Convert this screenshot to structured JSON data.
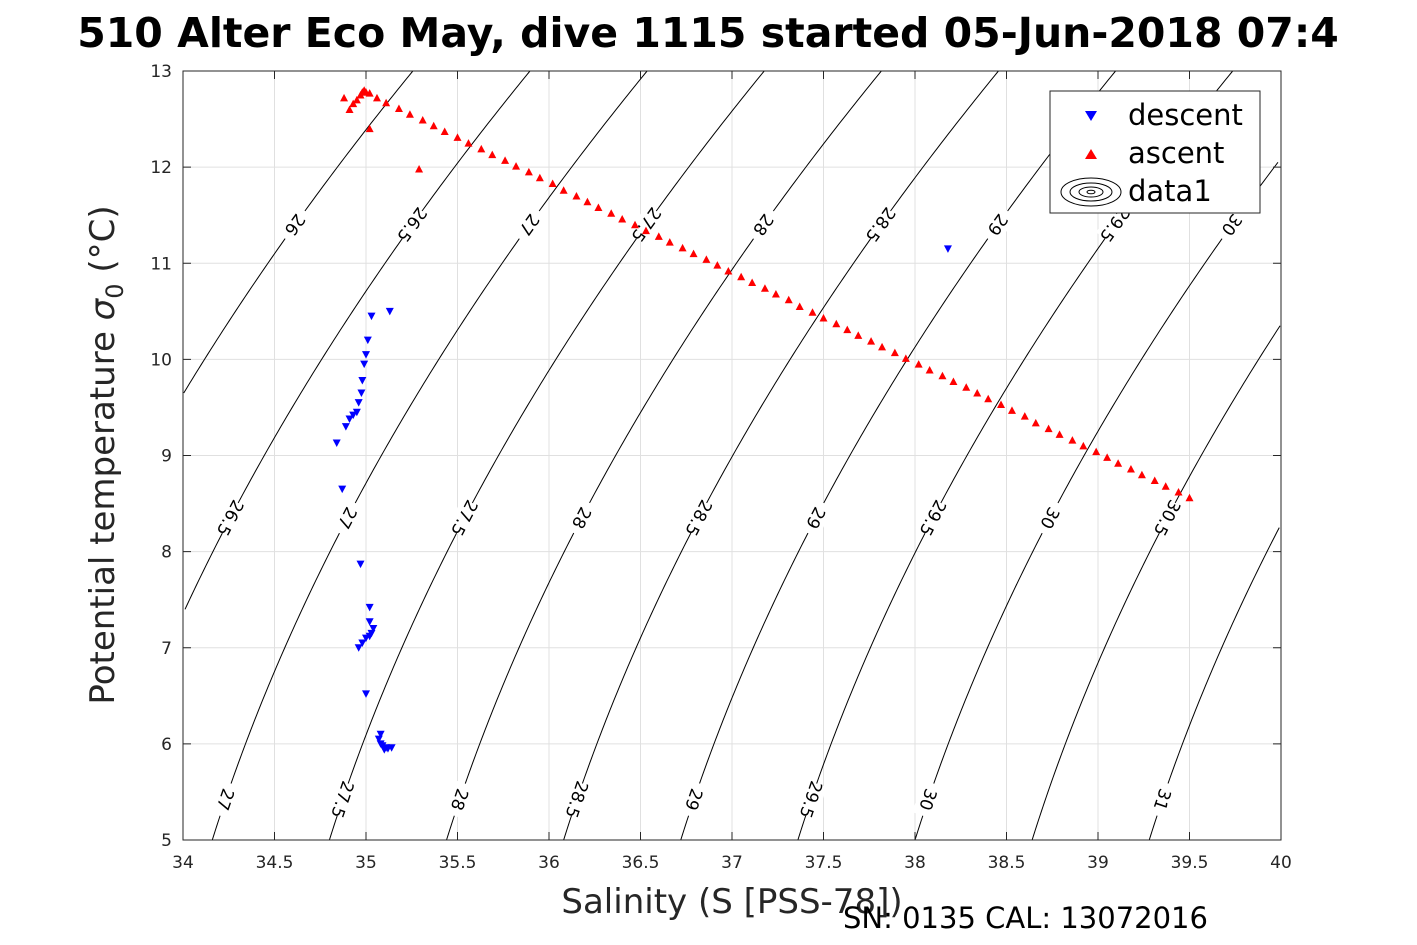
{
  "chart_data": {
    "type": "scatter",
    "title": "510 Alter Eco May, dive 1115 started 05-Jun-2018 07:4",
    "xlabel": "Salinity (S [PSS-78])",
    "ylabel_main": "Potential temperature ",
    "ylabel_symbol": "σ",
    "ylabel_sub": "0",
    "ylabel_unit": " (°C)",
    "footer": "SN: 0135  CAL: 13072016",
    "xlim": [
      34,
      40
    ],
    "ylim": [
      5,
      13
    ],
    "xticks": [
      "34",
      "34.5",
      "35",
      "35.5",
      "36",
      "36.5",
      "37",
      "37.5",
      "38",
      "38.5",
      "39",
      "39.5",
      "40"
    ],
    "yticks": [
      "5",
      "6",
      "7",
      "8",
      "9",
      "10",
      "11",
      "12",
      "13"
    ],
    "grid": true,
    "legend_position": "top-right",
    "legend": [
      "descent",
      "ascent",
      "data1"
    ],
    "colors": {
      "descent": "#0000ff",
      "ascent": "#ff0000",
      "contour": "#000000",
      "grid": "#e0e0e0"
    },
    "series": [
      {
        "name": "descent",
        "marker": "triangle-down",
        "points": [
          [
            35.13,
            10.5
          ],
          [
            35.03,
            10.45
          ],
          [
            35.01,
            10.2
          ],
          [
            35.0,
            10.05
          ],
          [
            34.99,
            9.95
          ],
          [
            34.98,
            9.78
          ],
          [
            34.975,
            9.65
          ],
          [
            34.96,
            9.55
          ],
          [
            34.95,
            9.45
          ],
          [
            34.93,
            9.42
          ],
          [
            34.91,
            9.38
          ],
          [
            34.89,
            9.3
          ],
          [
            34.84,
            9.13
          ],
          [
            34.87,
            8.65
          ],
          [
            34.97,
            7.87
          ],
          [
            35.02,
            7.42
          ],
          [
            35.02,
            7.27
          ],
          [
            35.04,
            7.2
          ],
          [
            35.03,
            7.15
          ],
          [
            35.02,
            7.12
          ],
          [
            35.0,
            7.1
          ],
          [
            34.98,
            7.05
          ],
          [
            34.96,
            7.0
          ],
          [
            35.0,
            6.52
          ],
          [
            35.08,
            6.1
          ],
          [
            35.07,
            6.05
          ],
          [
            35.08,
            6.0
          ],
          [
            35.09,
            5.98
          ],
          [
            35.11,
            5.96
          ],
          [
            35.12,
            5.95
          ],
          [
            35.14,
            5.96
          ],
          [
            35.1,
            5.94
          ],
          [
            38.18,
            11.15
          ]
        ]
      },
      {
        "name": "ascent",
        "marker": "triangle-up",
        "points": [
          [
            34.88,
            12.72
          ],
          [
            34.91,
            12.6
          ],
          [
            34.93,
            12.66
          ],
          [
            34.95,
            12.7
          ],
          [
            34.97,
            12.75
          ],
          [
            34.98,
            12.78
          ],
          [
            34.99,
            12.8
          ],
          [
            35.0,
            12.78
          ],
          [
            35.02,
            12.77
          ],
          [
            35.02,
            12.4
          ],
          [
            35.29,
            11.98
          ],
          [
            35.06,
            12.72
          ],
          [
            35.11,
            12.67
          ],
          [
            35.18,
            12.61
          ],
          [
            35.24,
            12.55
          ],
          [
            35.31,
            12.49
          ],
          [
            35.37,
            12.43
          ],
          [
            35.43,
            12.37
          ],
          [
            35.5,
            12.31
          ],
          [
            35.56,
            12.25
          ],
          [
            35.63,
            12.19
          ],
          [
            35.69,
            12.13
          ],
          [
            35.76,
            12.07
          ],
          [
            35.82,
            12.01
          ],
          [
            35.89,
            11.95
          ],
          [
            35.95,
            11.89
          ],
          [
            36.02,
            11.83
          ],
          [
            36.08,
            11.76
          ],
          [
            36.15,
            11.7
          ],
          [
            36.21,
            11.64
          ],
          [
            36.27,
            11.58
          ],
          [
            36.34,
            11.52
          ],
          [
            36.4,
            11.46
          ],
          [
            36.47,
            11.4
          ],
          [
            36.53,
            11.34
          ],
          [
            36.6,
            11.28
          ],
          [
            36.66,
            11.22
          ],
          [
            36.73,
            11.16
          ],
          [
            36.79,
            11.1
          ],
          [
            36.86,
            11.04
          ],
          [
            36.92,
            10.98
          ],
          [
            36.98,
            10.92
          ],
          [
            37.05,
            10.86
          ],
          [
            37.11,
            10.8
          ],
          [
            37.18,
            10.74
          ],
          [
            37.24,
            10.68
          ],
          [
            37.31,
            10.62
          ],
          [
            37.37,
            10.55
          ],
          [
            37.44,
            10.49
          ],
          [
            37.5,
            10.43
          ],
          [
            37.57,
            10.37
          ],
          [
            37.63,
            10.31
          ],
          [
            37.69,
            10.25
          ],
          [
            37.76,
            10.19
          ],
          [
            37.82,
            10.13
          ],
          [
            37.89,
            10.07
          ],
          [
            37.95,
            10.01
          ],
          [
            38.02,
            9.95
          ],
          [
            38.08,
            9.89
          ],
          [
            38.15,
            9.83
          ],
          [
            38.21,
            9.77
          ],
          [
            38.28,
            9.71
          ],
          [
            38.34,
            9.65
          ],
          [
            38.4,
            9.59
          ],
          [
            38.47,
            9.53
          ],
          [
            38.53,
            9.47
          ],
          [
            38.6,
            9.41
          ],
          [
            38.66,
            9.34
          ],
          [
            38.73,
            9.28
          ],
          [
            38.79,
            9.22
          ],
          [
            38.86,
            9.16
          ],
          [
            38.92,
            9.1
          ],
          [
            38.99,
            9.04
          ],
          [
            39.05,
            8.98
          ],
          [
            39.11,
            8.92
          ],
          [
            39.18,
            8.86
          ],
          [
            39.24,
            8.8
          ],
          [
            39.31,
            8.74
          ],
          [
            39.37,
            8.68
          ],
          [
            39.44,
            8.62
          ],
          [
            39.5,
            8.56
          ]
        ]
      }
    ],
    "contours": {
      "levels": [
        26,
        26.5,
        27,
        27.5,
        28,
        28.5,
        29,
        29.5,
        30,
        30.5,
        31
      ],
      "labels_upper": [
        "26",
        "26.5",
        "27",
        "27.5",
        "28",
        "28.5",
        "29",
        "29.5",
        "30",
        "30.5"
      ],
      "labels_middle": [
        "26.5",
        "27",
        "27.5",
        "28",
        "28.5",
        "29",
        "29.5",
        "30",
        "30.5",
        "31"
      ],
      "labels_lower": [
        "27",
        "27.5",
        "28",
        "28.5",
        "29",
        "29.5",
        "30",
        "31"
      ]
    }
  }
}
